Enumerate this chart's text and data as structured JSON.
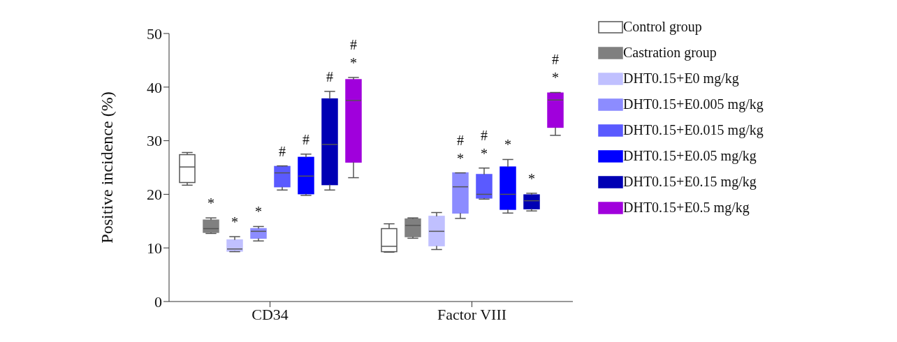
{
  "chart_data": {
    "type": "box",
    "ylabel": "Positive incidence (%)",
    "categories": [
      "CD34",
      "Factor VIII"
    ],
    "ylim": [
      0,
      50
    ],
    "yticks": [
      0,
      10,
      20,
      30,
      40,
      50
    ],
    "grid": false,
    "legend": "right",
    "series": [
      {
        "name": "Control group",
        "color": "#ffffff",
        "boxes": [
          {
            "low": 21.7,
            "q1": 22.2,
            "median": 25.1,
            "q3": 27.4,
            "high": 27.8
          },
          {
            "low": 9.2,
            "q1": 9.3,
            "median": 10.3,
            "q3": 13.6,
            "high": 14.5
          }
        ]
      },
      {
        "name": "Castration group",
        "color": "#808080",
        "boxes": [
          {
            "low": 12.7,
            "q1": 12.9,
            "median": 13.6,
            "q3": 15.2,
            "high": 15.6
          },
          {
            "low": 11.8,
            "q1": 12.1,
            "median": 14.2,
            "q3": 15.4,
            "high": 15.6
          }
        ],
        "value_labels": [
          "*",
          null
        ]
      },
      {
        "name": "DHT0.15+E0 mg/kg",
        "color": "#c0c0ff",
        "boxes": [
          {
            "low": 9.3,
            "q1": 9.4,
            "median": 9.8,
            "q3": 11.5,
            "high": 12.1
          },
          {
            "low": 9.7,
            "q1": 10.4,
            "median": 13.1,
            "q3": 15.9,
            "high": 16.6
          }
        ],
        "value_labels": [
          "*",
          null
        ]
      },
      {
        "name": "DHT0.15+E0.005 mg/kg",
        "color": "#8c8cff",
        "boxes": [
          {
            "low": 11.3,
            "q1": 11.8,
            "median": 13.1,
            "q3": 13.6,
            "high": 14.0
          },
          {
            "low": 15.5,
            "q1": 16.5,
            "median": 21.4,
            "q3": 24.0,
            "high": 24.0
          }
        ],
        "value_labels": [
          "*",
          "#\n*"
        ]
      },
      {
        "name": "DHT0.15+E0.015 mg/kg",
        "color": "#5a5aff",
        "boxes": [
          {
            "low": 20.8,
            "q1": 21.4,
            "median": 24.0,
            "q3": 25.2,
            "high": 25.3
          },
          {
            "low": 19.1,
            "q1": 19.3,
            "median": 20.0,
            "q3": 23.7,
            "high": 24.9
          }
        ],
        "value_labels": [
          "#",
          "#\n*"
        ]
      },
      {
        "name": "DHT0.15+E0.05 mg/kg",
        "color": "#0000ff",
        "boxes": [
          {
            "low": 19.8,
            "q1": 20.1,
            "median": 23.4,
            "q3": 26.9,
            "high": 27.5
          },
          {
            "low": 16.5,
            "q1": 17.2,
            "median": 20.0,
            "q3": 25.1,
            "high": 26.5
          }
        ],
        "value_labels": [
          "#",
          "*"
        ]
      },
      {
        "name": "DHT0.15+E0.15 mg/kg",
        "color": "#0000b4",
        "boxes": [
          {
            "low": 20.8,
            "q1": 21.8,
            "median": 29.3,
            "q3": 37.8,
            "high": 39.2
          },
          {
            "low": 16.9,
            "q1": 17.3,
            "median": 18.8,
            "q3": 19.9,
            "high": 20.2
          }
        ],
        "value_labels": [
          "#",
          "*"
        ]
      },
      {
        "name": "DHT0.15+E0.5 mg/kg",
        "color": "#a000dc",
        "boxes": [
          {
            "low": 23.1,
            "q1": 26.0,
            "median": 37.5,
            "q3": 41.4,
            "high": 41.8
          },
          {
            "low": 31.0,
            "q1": 32.5,
            "median": 37.6,
            "q3": 38.9,
            "high": 39.0
          }
        ],
        "value_labels": [
          "#\n*",
          "#\n*"
        ]
      }
    ]
  }
}
